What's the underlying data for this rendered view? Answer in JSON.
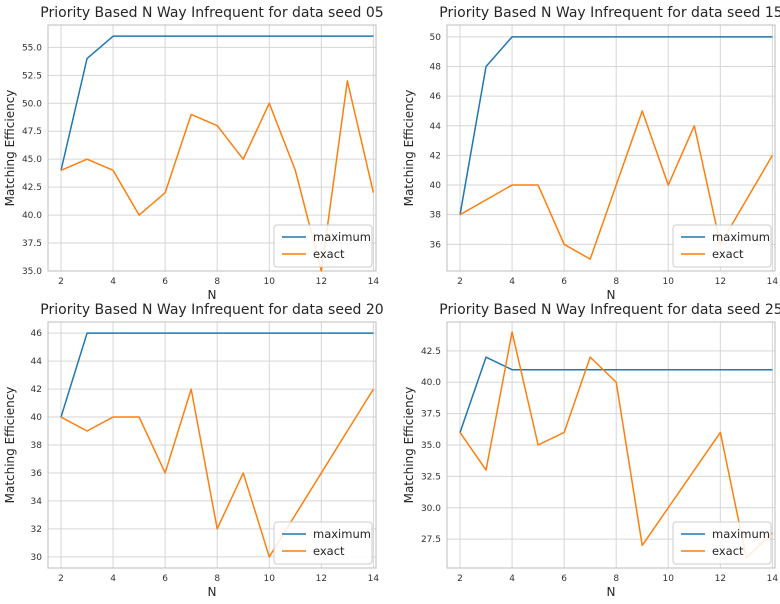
{
  "colors": {
    "maximum": "#1f77b4",
    "exact": "#ff7f0e"
  },
  "chart_data": [
    {
      "type": "line",
      "title": "Priority Based N Way Infrequent for data seed 05",
      "xlabel": "N",
      "ylabel": "Matching Efficiency",
      "x": [
        2,
        3,
        4,
        5,
        6,
        7,
        8,
        9,
        10,
        11,
        12,
        13,
        14
      ],
      "xlim": [
        1.5,
        14.1
      ],
      "ylim": [
        35.0,
        57.0
      ],
      "xticks": [
        2,
        4,
        6,
        8,
        10,
        12,
        14
      ],
      "yticks": [
        35.0,
        37.5,
        40.0,
        42.5,
        45.0,
        47.5,
        50.0,
        52.5,
        55.0
      ],
      "ytick_labels": [
        "35.0",
        "37.5",
        "40.0",
        "42.5",
        "45.0",
        "47.5",
        "50.0",
        "52.5",
        "55.0"
      ],
      "grid": true,
      "legend": "lower-right",
      "series": [
        {
          "name": "maximum",
          "values": [
            44,
            54,
            56,
            56,
            56,
            56,
            56,
            56,
            56,
            56,
            56,
            56,
            56
          ]
        },
        {
          "name": "exact",
          "values": [
            44,
            45,
            44,
            40,
            42,
            49,
            48,
            45,
            50,
            44,
            35,
            52,
            42
          ]
        }
      ]
    },
    {
      "type": "line",
      "title": "Priority Based N Way Infrequent for data seed 15",
      "xlabel": "N",
      "ylabel": "Matching Efficiency",
      "x": [
        2,
        3,
        4,
        5,
        6,
        7,
        8,
        9,
        10,
        11,
        12,
        13,
        14
      ],
      "xlim": [
        1.5,
        14.1
      ],
      "ylim": [
        34.2,
        50.8
      ],
      "xticks": [
        2,
        4,
        6,
        8,
        10,
        12,
        14
      ],
      "yticks": [
        36,
        38,
        40,
        42,
        44,
        46,
        48,
        50
      ],
      "ytick_labels": [
        "36",
        "38",
        "40",
        "42",
        "44",
        "46",
        "48",
        "50"
      ],
      "grid": true,
      "legend": "lower-right",
      "series": [
        {
          "name": "maximum",
          "values": [
            38,
            48,
            50,
            50,
            50,
            50,
            50,
            50,
            50,
            50,
            50,
            50,
            50
          ]
        },
        {
          "name": "exact",
          "values": [
            38,
            39,
            40,
            40,
            36,
            35,
            40,
            45,
            40,
            44,
            36,
            39,
            42
          ]
        }
      ]
    },
    {
      "type": "line",
      "title": "Priority Based N Way Infrequent for data seed 20",
      "xlabel": "N",
      "ylabel": "Matching Efficiency",
      "x": [
        2,
        3,
        4,
        5,
        6,
        7,
        8,
        9,
        10,
        11,
        12,
        13,
        14
      ],
      "xlim": [
        1.5,
        14.1
      ],
      "ylim": [
        29.2,
        46.8
      ],
      "xticks": [
        2,
        4,
        6,
        8,
        10,
        12,
        14
      ],
      "yticks": [
        30,
        32,
        34,
        36,
        38,
        40,
        42,
        44,
        46
      ],
      "ytick_labels": [
        "30",
        "32",
        "34",
        "36",
        "38",
        "40",
        "42",
        "44",
        "46"
      ],
      "grid": true,
      "legend": "lower-right",
      "series": [
        {
          "name": "maximum",
          "values": [
            40,
            46,
            46,
            46,
            46,
            46,
            46,
            46,
            46,
            46,
            46,
            46,
            46
          ]
        },
        {
          "name": "exact",
          "values": [
            40,
            39,
            40,
            40,
            36,
            42,
            32,
            36,
            30,
            33,
            36,
            39,
            42
          ]
        }
      ]
    },
    {
      "type": "line",
      "title": "Priority Based N Way Infrequent for data seed 25",
      "xlabel": "N",
      "ylabel": "Matching Efficiency",
      "x": [
        2,
        3,
        4,
        5,
        6,
        7,
        8,
        9,
        10,
        11,
        12,
        13,
        14
      ],
      "xlim": [
        1.5,
        14.1
      ],
      "ylim": [
        25.2,
        44.8
      ],
      "xticks": [
        2,
        4,
        6,
        8,
        10,
        12,
        14
      ],
      "yticks": [
        27.5,
        30.0,
        32.5,
        35.0,
        37.5,
        40.0,
        42.5
      ],
      "ytick_labels": [
        "27.5",
        "30.0",
        "32.5",
        "35.0",
        "37.5",
        "40.0",
        "42.5"
      ],
      "grid": true,
      "legend": "lower-right",
      "series": [
        {
          "name": "maximum",
          "values": [
            36,
            42,
            41,
            41,
            41,
            41,
            41,
            41,
            41,
            41,
            41,
            41,
            41
          ]
        },
        {
          "name": "exact",
          "values": [
            36,
            33,
            44,
            35,
            36,
            42,
            40,
            27,
            30,
            33,
            36,
            26,
            28
          ]
        }
      ]
    }
  ]
}
